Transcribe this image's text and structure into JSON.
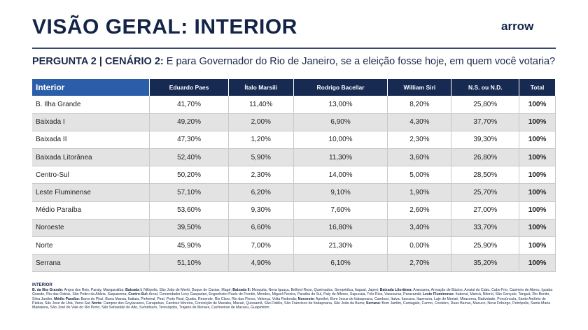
{
  "header": {
    "title": "VISÃO GERAL: INTERIOR",
    "logo": "arrow"
  },
  "question": {
    "label": "PERGUNTA 2 | CENÁRIO 2:",
    "text": " E para Governador do Rio de Janeiro, se a eleição fosse hoje, em quem você votaria?"
  },
  "table": {
    "columns": [
      "Interior",
      "Eduardo Paes",
      "Ítalo Marsili",
      "Rodrigo Bacellar",
      "William Siri",
      "N.S. ou N.D.",
      "Total"
    ],
    "rows": [
      [
        "B. Ilha Grande",
        "41,70%",
        "11,40%",
        "13,00%",
        "8,20%",
        "25,80%",
        "100%"
      ],
      [
        "Baixada I",
        "49,20%",
        "2,00%",
        "6,90%",
        "4,30%",
        "37,70%",
        "100%"
      ],
      [
        "Baixada II",
        "47,30%",
        "1,20%",
        "10,00%",
        "2,30%",
        "39,30%",
        "100%"
      ],
      [
        "Baixada Litorânea",
        "52,40%",
        "5,90%",
        "11,30%",
        "3,60%",
        "26,80%",
        "100%"
      ],
      [
        "Centro-Sul",
        "50,20%",
        "2,30%",
        "14,00%",
        "5,00%",
        "28,50%",
        "100%"
      ],
      [
        "Leste Fluminense",
        "57,10%",
        "6,20%",
        "9,10%",
        "1,90%",
        "25,70%",
        "100%"
      ],
      [
        "Médio Paraíba",
        "53,60%",
        "9,30%",
        "7,60%",
        "2,60%",
        "27,00%",
        "100%"
      ],
      [
        "Noroeste",
        "39,50%",
        "6,60%",
        "16,80%",
        "3,40%",
        "33,70%",
        "100%"
      ],
      [
        "Norte",
        "45,90%",
        "7,00%",
        "21,30%",
        "0,00%",
        "25,90%",
        "100%"
      ],
      [
        "Serrana",
        "51,10%",
        "4,90%",
        "6,10%",
        "2,70%",
        "35,20%",
        "100%"
      ]
    ]
  },
  "footnote": {
    "heading": "INTERIOR",
    "segments": [
      {
        "b": "B. da Ilha Grande:",
        "t": " Angra dos Reis, Paraty, Mangaratiba; "
      },
      {
        "b": "Baixada I:",
        "t": " Nilópolis, São João de Meriti, Duque de Caxias, Magé; "
      },
      {
        "b": "Baixada II:",
        "t": " Mesquita, Nova Iguaçu, Belford Roxo, Queimados, Seropédica, Itaguaí, Japeri; "
      },
      {
        "b": "Baixada Litorânea:",
        "t": " Araruama, Armação de Búzios, Arraial do Cabo, Cabo Frio, Casimiro de Abreu, Iguaba Grande, Rio das Ostras, São Pedro da Aldeia, Saquarema; "
      },
      {
        "b": "Centro-Sul:",
        "t": " Areal, Comendador Levy Gasparian, Engenheiro Paulo de Frontin, Mendes, Miguel Pereira, Paraíba do Sul, Paty do Alferes, Sapucaia, Três Rios, Vassouras, Paracambi; "
      },
      {
        "b": "Leste Fluminense:",
        "t": " Itaboraí, Maricá, Niterói, São Gonçalo, Tanguá, Rio Bonito, Silva Jardim; "
      },
      {
        "b": "Médio Paraíba:",
        "t": " Barra do Piraí, Barra Mansa, Itatiaia, Pinheiral, Piraí, Porto Real, Quatis, Resende, Rio Claro, Rio das Flores, Valença, Volta Redonda; "
      },
      {
        "b": "Noroeste:",
        "t": " Aperibé, Bom Jesus do Itabapoana, Cambuci, Italva, Itaocara, Itaperuna, Laje do Muriaé, Miracema, Natividade, Porciúncula, Santo Antônio de Pádua, São José de Ubá, Varre-Sai; "
      },
      {
        "b": "Norte:",
        "t": " Campos dos Goytacazes, Carapebus, Cardoso Moreira, Conceição de Macabu, Macaé, Quissamã, São Fidélis, São Francisco de Itabapoana, São João da Barra; "
      },
      {
        "b": "Serrana:",
        "t": " Bom Jardim, Cantagalo, Carmo, Cordeiro, Duas Barras, Macuco, Nova Friburgo, Petrópolis, Santa Maria Madalena, São José do Vale do Rio Preto, São Sebastião do Alto, Sumidouro, Teresópolis, Trajano de Moraes, Cachoeiras de Macacu, Guapimirim."
      }
    ]
  }
}
